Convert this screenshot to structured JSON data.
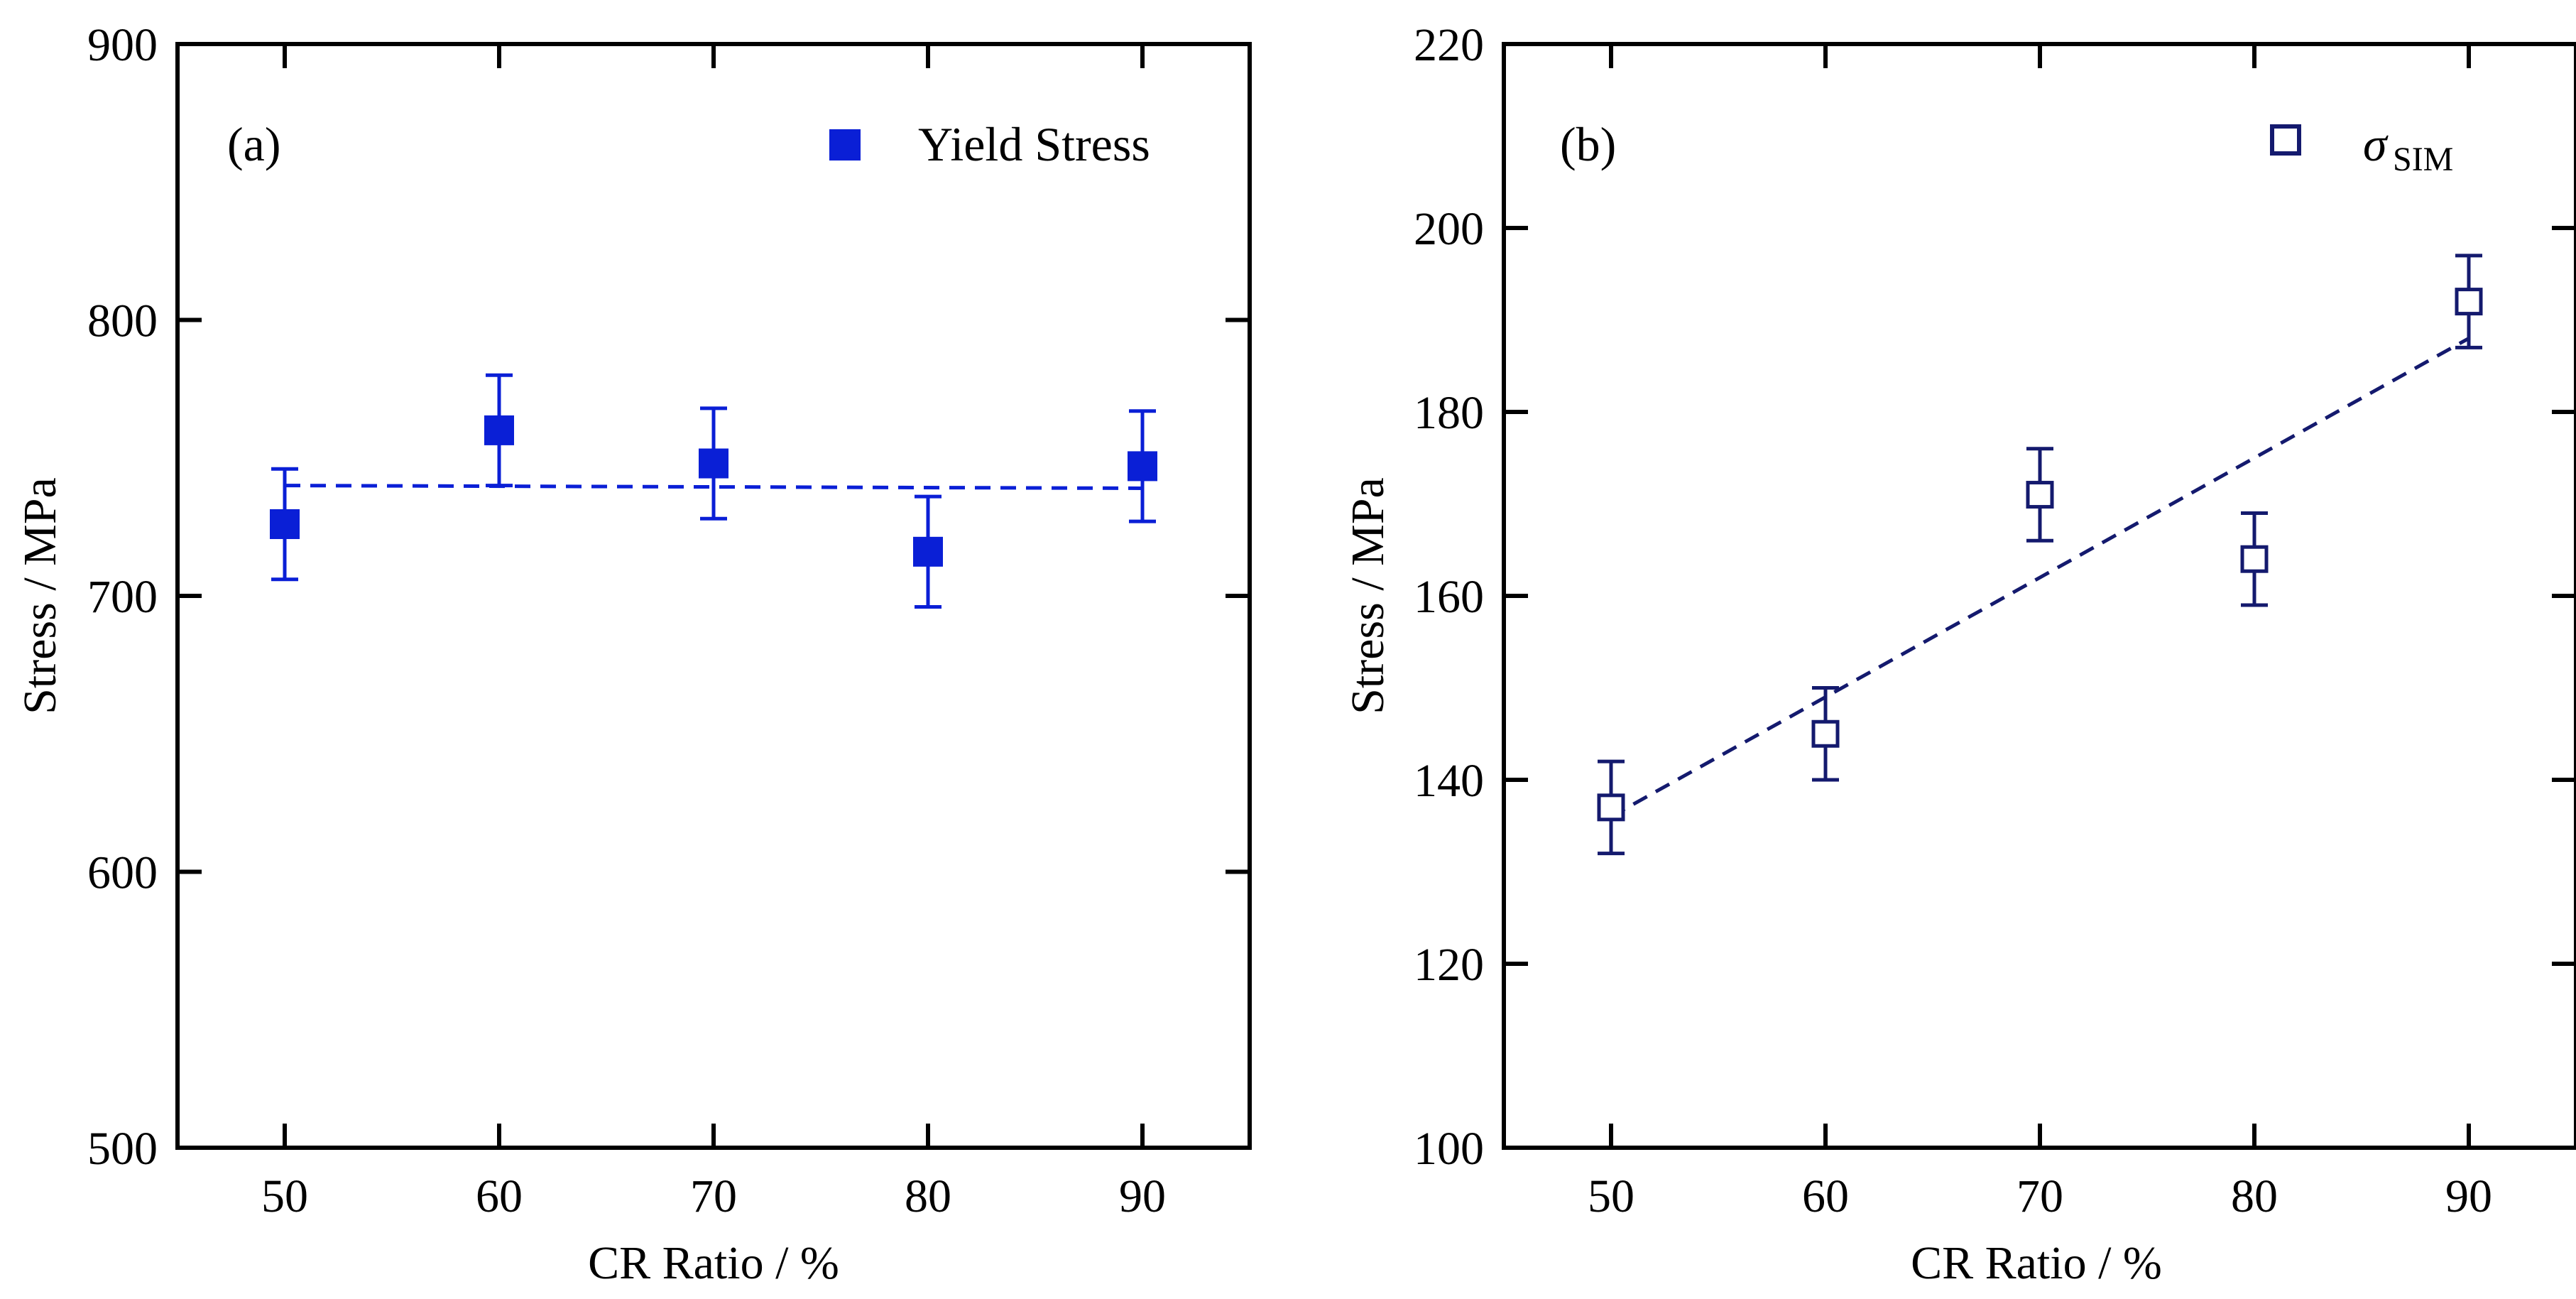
{
  "chart_data": [
    {
      "type": "scatter",
      "panel_label": "(a)",
      "xlabel": "CR Ratio / %",
      "ylabel": "Stress / MPa",
      "xlim": [
        45,
        95
      ],
      "ylim": [
        500,
        900
      ],
      "x_ticks": [
        50,
        60,
        70,
        80,
        90
      ],
      "y_ticks": [
        500,
        600,
        700,
        800,
        900
      ],
      "grid": false,
      "legend_position": "top-right",
      "series": [
        {
          "name": "Yield Stress",
          "marker": "filled-square",
          "color": "#0a1fd6",
          "x": [
            50,
            60,
            70,
            80,
            90
          ],
          "y": [
            726,
            760,
            748,
            716,
            747
          ],
          "err": [
            20,
            20,
            20,
            20,
            20
          ]
        }
      ],
      "fit_line": {
        "x": [
          50,
          90
        ],
        "y": [
          740,
          739
        ],
        "style": "dashed",
        "color": "#0a1fd6"
      }
    },
    {
      "type": "scatter",
      "panel_label": "(b)",
      "xlabel": "CR Ratio / %",
      "ylabel": "Stress / MPa",
      "xlim": [
        45,
        95
      ],
      "ylim": [
        100,
        220
      ],
      "x_ticks": [
        50,
        60,
        70,
        80,
        90
      ],
      "y_ticks": [
        100,
        120,
        140,
        160,
        180,
        200,
        220
      ],
      "grid": false,
      "legend_position": "top-right",
      "series": [
        {
          "name": "σ",
          "name_subscript": "SIM",
          "marker": "open-square",
          "color": "#141a6e",
          "x": [
            50,
            60,
            70,
            80,
            90
          ],
          "y": [
            137,
            145,
            171,
            164,
            192
          ],
          "err": [
            5,
            5,
            5,
            5,
            5
          ]
        }
      ],
      "fit_line": {
        "x": [
          50,
          90
        ],
        "y": [
          136,
          188
        ],
        "style": "dashed",
        "color": "#141a6e"
      }
    }
  ]
}
